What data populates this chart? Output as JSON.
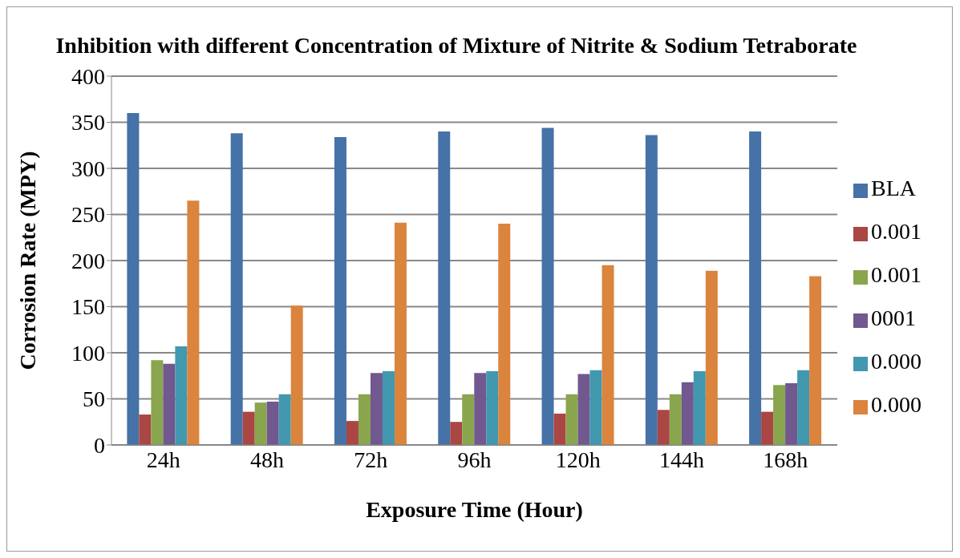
{
  "chart_data": {
    "type": "bar",
    "title": "Inhibition with different Concentration of Mixture of Nitrite & Sodium Tetraborate",
    "xlabel": "Exposure Time (Hour)",
    "ylabel": "Corrosion Rate (MPY)",
    "categories": [
      "24h",
      "48h",
      "72h",
      "96h",
      "120h",
      "144h",
      "168h"
    ],
    "series": [
      {
        "name": "BLA",
        "color": "#4572a7",
        "values": [
          360,
          338,
          334,
          340,
          344,
          336,
          340
        ]
      },
      {
        "name": "0.001",
        "color": "#aa4643",
        "values": [
          33,
          36,
          26,
          25,
          34,
          38,
          36
        ]
      },
      {
        "name": "0.001",
        "color": "#89a54e",
        "values": [
          92,
          46,
          55,
          55,
          55,
          55,
          65
        ]
      },
      {
        "name": "0001",
        "color": "#71588f",
        "values": [
          88,
          47,
          78,
          78,
          77,
          68,
          67
        ]
      },
      {
        "name": "0.000",
        "color": "#4198af",
        "values": [
          107,
          55,
          80,
          80,
          81,
          80,
          81
        ]
      },
      {
        "name": "0.000",
        "color": "#db843d",
        "values": [
          265,
          151,
          241,
          240,
          195,
          189,
          183
        ]
      }
    ],
    "ylim": [
      0,
      400
    ],
    "yticks": [
      0,
      50,
      100,
      150,
      200,
      250,
      300,
      350,
      400
    ],
    "grid": "y",
    "legend": "right"
  }
}
